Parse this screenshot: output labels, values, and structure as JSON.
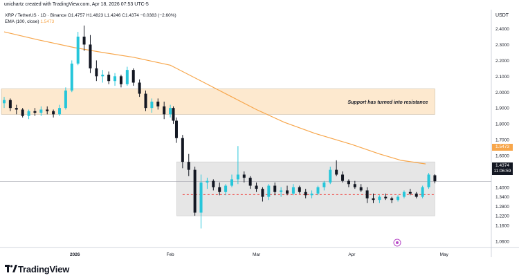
{
  "header": {
    "credit": "unichartz created with TradingView.com, Apr 18, 2026 07:53 UTC-5"
  },
  "legend": {
    "symbol_line": "XRP / TetherUS · 1D · Binance",
    "open": "O1.4757",
    "high": "H1.4823",
    "low": "L1.4246",
    "close": "C1.4374",
    "change": "−0.0383 (−2.60%)",
    "ema_label": "EMA (100, close)",
    "ema_value": "1.5473"
  },
  "axis": {
    "currency": "USDT",
    "price_ticks": [
      "2.4000",
      "2.3000",
      "2.2000",
      "2.1000",
      "2.0000",
      "1.9000",
      "1.8000",
      "1.7000",
      "1.6000",
      "1.5000",
      "1.4000",
      "1.3400",
      "1.2800",
      "1.2200",
      "1.1600",
      "1.0600"
    ],
    "time_ticks": [
      "2026",
      "Feb",
      "Mar",
      "Apr",
      "May"
    ]
  },
  "badges": {
    "ema_price": "1.5473",
    "last_price": "1.4374",
    "countdown": "11:06:59"
  },
  "annotation": {
    "resistance_text": "Support has turned into resistance"
  },
  "colors": {
    "up": "#26c6da",
    "down": "#131722",
    "ema": "#f7a64b",
    "resistance_zone": "#fde9cf",
    "range_zone": "#e6e6e6",
    "support_dash": "#ef5350"
  },
  "footer": {
    "brand": "TradingView"
  },
  "chart_data": {
    "type": "candlestick",
    "title": "XRP / TetherUS · 1D · Binance",
    "ylabel": "USDT",
    "ylim": [
      1.02,
      2.52
    ],
    "xlim": [
      "2025-12-09",
      "2026-05-15"
    ],
    "x_ticks": [
      {
        "label": "2026",
        "date": "2026-01-01"
      },
      {
        "label": "Feb",
        "date": "2026-02-01"
      },
      {
        "label": "Mar",
        "date": "2026-03-01"
      },
      {
        "label": "Apr",
        "date": "2026-04-01"
      },
      {
        "label": "May",
        "date": "2026-05-01"
      }
    ],
    "y_ticks": [
      2.4,
      2.3,
      2.2,
      2.1,
      2.0,
      1.9,
      1.8,
      1.7,
      1.6,
      1.5,
      1.4,
      1.34,
      1.28,
      1.22,
      1.16,
      1.06
    ],
    "zones": [
      {
        "name": "resistance",
        "from": "2025-12-09",
        "to": "2026-04-28",
        "low": 1.86,
        "high": 2.02
      },
      {
        "name": "range",
        "from": "2026-02-04",
        "to": "2026-04-28",
        "low": 1.22,
        "high": 1.56
      }
    ],
    "dashed_level": {
      "value": 1.354,
      "from": "2026-02-05",
      "to": "2026-04-28"
    },
    "last_price": 1.4374,
    "ema": {
      "name": "EMA (100, close)",
      "points": [
        [
          "2025-12-09",
          2.38
        ],
        [
          "2025-12-20",
          2.33
        ],
        [
          "2026-01-01",
          2.28
        ],
        [
          "2026-01-10",
          2.25
        ],
        [
          "2026-01-20",
          2.22
        ],
        [
          "2026-02-01",
          2.17
        ],
        [
          "2026-02-10",
          2.08
        ],
        [
          "2026-02-20",
          1.98
        ],
        [
          "2026-03-01",
          1.89
        ],
        [
          "2026-03-10",
          1.81
        ],
        [
          "2026-03-20",
          1.74
        ],
        [
          "2026-04-01",
          1.67
        ],
        [
          "2026-04-10",
          1.61
        ],
        [
          "2026-04-17",
          1.57
        ],
        [
          "2026-04-25",
          1.547
        ]
      ]
    },
    "candles": [
      {
        "date": "2025-12-09",
        "o": 1.93,
        "h": 1.97,
        "l": 1.9,
        "c": 1.95
      },
      {
        "date": "2025-12-11",
        "o": 1.95,
        "h": 1.96,
        "l": 1.88,
        "c": 1.9
      },
      {
        "date": "2025-12-13",
        "o": 1.9,
        "h": 1.92,
        "l": 1.86,
        "c": 1.89
      },
      {
        "date": "2025-12-15",
        "o": 1.89,
        "h": 1.9,
        "l": 1.84,
        "c": 1.85
      },
      {
        "date": "2025-12-17",
        "o": 1.85,
        "h": 1.89,
        "l": 1.83,
        "c": 1.88
      },
      {
        "date": "2025-12-19",
        "o": 1.88,
        "h": 1.9,
        "l": 1.85,
        "c": 1.87
      },
      {
        "date": "2025-12-21",
        "o": 1.87,
        "h": 1.91,
        "l": 1.85,
        "c": 1.89
      },
      {
        "date": "2025-12-23",
        "o": 1.89,
        "h": 1.91,
        "l": 1.86,
        "c": 1.88
      },
      {
        "date": "2025-12-25",
        "o": 1.88,
        "h": 1.89,
        "l": 1.84,
        "c": 1.86
      },
      {
        "date": "2025-12-27",
        "o": 1.86,
        "h": 1.92,
        "l": 1.85,
        "c": 1.9
      },
      {
        "date": "2025-12-29",
        "o": 1.9,
        "h": 2.03,
        "l": 1.89,
        "c": 2.01
      },
      {
        "date": "2025-12-31",
        "o": 2.01,
        "h": 2.2,
        "l": 2.0,
        "c": 2.18
      },
      {
        "date": "2026-01-02",
        "o": 2.18,
        "h": 2.38,
        "l": 2.17,
        "c": 2.35
      },
      {
        "date": "2026-01-04",
        "o": 2.35,
        "h": 2.42,
        "l": 2.26,
        "c": 2.3
      },
      {
        "date": "2026-01-06",
        "o": 2.3,
        "h": 2.36,
        "l": 2.12,
        "c": 2.15
      },
      {
        "date": "2026-01-08",
        "o": 2.15,
        "h": 2.2,
        "l": 2.07,
        "c": 2.1
      },
      {
        "date": "2026-01-10",
        "o": 2.1,
        "h": 2.14,
        "l": 2.06,
        "c": 2.11
      },
      {
        "date": "2026-01-12",
        "o": 2.11,
        "h": 2.13,
        "l": 2.05,
        "c": 2.07
      },
      {
        "date": "2026-01-14",
        "o": 2.07,
        "h": 2.12,
        "l": 2.04,
        "c": 2.1
      },
      {
        "date": "2026-01-16",
        "o": 2.1,
        "h": 2.11,
        "l": 2.03,
        "c": 2.05
      },
      {
        "date": "2026-01-18",
        "o": 2.05,
        "h": 2.16,
        "l": 2.04,
        "c": 2.14
      },
      {
        "date": "2026-01-20",
        "o": 2.14,
        "h": 2.15,
        "l": 2.04,
        "c": 2.06
      },
      {
        "date": "2026-01-22",
        "o": 2.06,
        "h": 2.08,
        "l": 1.97,
        "c": 1.99
      },
      {
        "date": "2026-01-24",
        "o": 1.99,
        "h": 2.01,
        "l": 1.88,
        "c": 1.9
      },
      {
        "date": "2026-01-26",
        "o": 1.9,
        "h": 1.96,
        "l": 1.87,
        "c": 1.94
      },
      {
        "date": "2026-01-28",
        "o": 1.94,
        "h": 1.96,
        "l": 1.89,
        "c": 1.91
      },
      {
        "date": "2026-01-30",
        "o": 1.91,
        "h": 1.94,
        "l": 1.83,
        "c": 1.86
      },
      {
        "date": "2026-02-01",
        "o": 1.86,
        "h": 1.92,
        "l": 1.84,
        "c": 1.9
      },
      {
        "date": "2026-02-02",
        "o": 1.9,
        "h": 1.91,
        "l": 1.8,
        "c": 1.82
      },
      {
        "date": "2026-02-03",
        "o": 1.82,
        "h": 1.84,
        "l": 1.68,
        "c": 1.71
      },
      {
        "date": "2026-02-05",
        "o": 1.71,
        "h": 1.73,
        "l": 1.52,
        "c": 1.56
      },
      {
        "date": "2026-02-07",
        "o": 1.56,
        "h": 1.61,
        "l": 1.47,
        "c": 1.51
      },
      {
        "date": "2026-02-09",
        "o": 1.51,
        "h": 1.53,
        "l": 1.22,
        "c": 1.24
      },
      {
        "date": "2026-02-11",
        "o": 1.24,
        "h": 1.48,
        "l": 1.14,
        "c": 1.43
      },
      {
        "date": "2026-02-13",
        "o": 1.43,
        "h": 1.46,
        "l": 1.39,
        "c": 1.44
      },
      {
        "date": "2026-02-15",
        "o": 1.44,
        "h": 1.45,
        "l": 1.38,
        "c": 1.4
      },
      {
        "date": "2026-02-17",
        "o": 1.4,
        "h": 1.43,
        "l": 1.35,
        "c": 1.37
      },
      {
        "date": "2026-02-19",
        "o": 1.37,
        "h": 1.42,
        "l": 1.35,
        "c": 1.41
      },
      {
        "date": "2026-02-21",
        "o": 1.41,
        "h": 1.48,
        "l": 1.4,
        "c": 1.45
      },
      {
        "date": "2026-02-23",
        "o": 1.45,
        "h": 1.66,
        "l": 1.42,
        "c": 1.48
      },
      {
        "date": "2026-02-25",
        "o": 1.48,
        "h": 1.5,
        "l": 1.43,
        "c": 1.46
      },
      {
        "date": "2026-02-27",
        "o": 1.46,
        "h": 1.47,
        "l": 1.39,
        "c": 1.41
      },
      {
        "date": "2026-03-01",
        "o": 1.41,
        "h": 1.43,
        "l": 1.37,
        "c": 1.39
      },
      {
        "date": "2026-03-03",
        "o": 1.39,
        "h": 1.4,
        "l": 1.31,
        "c": 1.34
      },
      {
        "date": "2026-03-05",
        "o": 1.34,
        "h": 1.42,
        "l": 1.32,
        "c": 1.41
      },
      {
        "date": "2026-03-07",
        "o": 1.41,
        "h": 1.43,
        "l": 1.35,
        "c": 1.37
      },
      {
        "date": "2026-03-09",
        "o": 1.37,
        "h": 1.4,
        "l": 1.34,
        "c": 1.38
      },
      {
        "date": "2026-03-11",
        "o": 1.38,
        "h": 1.41,
        "l": 1.35,
        "c": 1.36
      },
      {
        "date": "2026-03-13",
        "o": 1.36,
        "h": 1.42,
        "l": 1.35,
        "c": 1.4
      },
      {
        "date": "2026-03-15",
        "o": 1.4,
        "h": 1.41,
        "l": 1.36,
        "c": 1.37
      },
      {
        "date": "2026-03-17",
        "o": 1.37,
        "h": 1.39,
        "l": 1.33,
        "c": 1.35
      },
      {
        "date": "2026-03-19",
        "o": 1.35,
        "h": 1.38,
        "l": 1.33,
        "c": 1.36
      },
      {
        "date": "2026-03-21",
        "o": 1.36,
        "h": 1.41,
        "l": 1.35,
        "c": 1.4
      },
      {
        "date": "2026-03-23",
        "o": 1.4,
        "h": 1.44,
        "l": 1.38,
        "c": 1.43
      },
      {
        "date": "2026-03-25",
        "o": 1.43,
        "h": 1.53,
        "l": 1.42,
        "c": 1.51
      },
      {
        "date": "2026-03-27",
        "o": 1.51,
        "h": 1.57,
        "l": 1.47,
        "c": 1.48
      },
      {
        "date": "2026-03-29",
        "o": 1.48,
        "h": 1.5,
        "l": 1.43,
        "c": 1.44
      },
      {
        "date": "2026-03-31",
        "o": 1.44,
        "h": 1.45,
        "l": 1.4,
        "c": 1.42
      },
      {
        "date": "2026-04-02",
        "o": 1.42,
        "h": 1.44,
        "l": 1.39,
        "c": 1.4
      },
      {
        "date": "2026-04-04",
        "o": 1.4,
        "h": 1.42,
        "l": 1.37,
        "c": 1.38
      },
      {
        "date": "2026-04-06",
        "o": 1.38,
        "h": 1.4,
        "l": 1.3,
        "c": 1.33
      },
      {
        "date": "2026-04-08",
        "o": 1.33,
        "h": 1.36,
        "l": 1.3,
        "c": 1.32
      },
      {
        "date": "2026-04-10",
        "o": 1.32,
        "h": 1.35,
        "l": 1.3,
        "c": 1.34
      },
      {
        "date": "2026-04-12",
        "o": 1.34,
        "h": 1.36,
        "l": 1.32,
        "c": 1.33
      },
      {
        "date": "2026-04-14",
        "o": 1.33,
        "h": 1.34,
        "l": 1.3,
        "c": 1.32
      },
      {
        "date": "2026-04-16",
        "o": 1.32,
        "h": 1.35,
        "l": 1.31,
        "c": 1.34
      },
      {
        "date": "2026-04-18",
        "o": 1.34,
        "h": 1.38,
        "l": 1.33,
        "c": 1.37
      },
      {
        "date": "2026-04-20",
        "o": 1.37,
        "h": 1.39,
        "l": 1.35,
        "c": 1.36
      },
      {
        "date": "2026-04-22",
        "o": 1.36,
        "h": 1.37,
        "l": 1.33,
        "c": 1.34
      },
      {
        "date": "2026-04-24",
        "o": 1.34,
        "h": 1.41,
        "l": 1.33,
        "c": 1.4
      },
      {
        "date": "2026-04-26",
        "o": 1.4,
        "h": 1.49,
        "l": 1.39,
        "c": 1.48
      },
      {
        "date": "2026-04-28",
        "o": 1.4757,
        "h": 1.4823,
        "l": 1.4246,
        "c": 1.4374
      }
    ]
  }
}
